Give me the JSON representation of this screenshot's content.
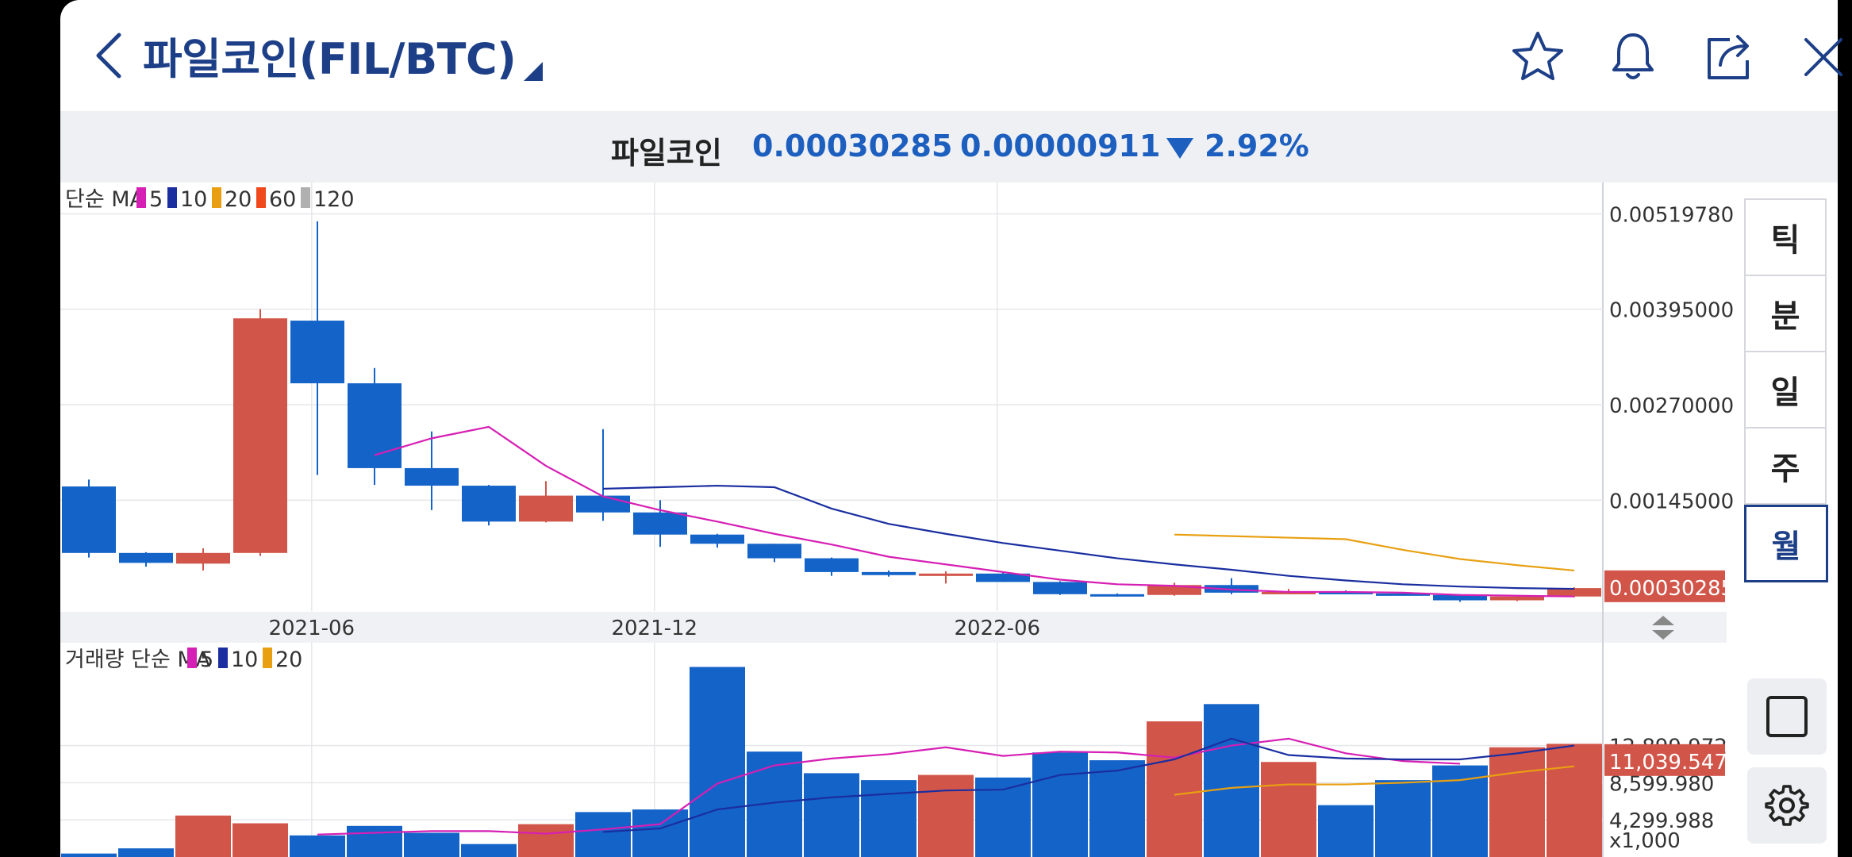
{
  "header": {
    "title": "파일코인(FIL/BTC)",
    "icons": [
      "back-chevron-icon",
      "star-icon",
      "bell-icon",
      "share-icon",
      "close-icon"
    ]
  },
  "price_bar": {
    "name": "파일코인",
    "price": "0.00030285",
    "change": "0.00000911",
    "change_pct": "2.92%",
    "direction": "down",
    "color": "#1d5fbf"
  },
  "periods": [
    {
      "label": "틱",
      "active": false
    },
    {
      "label": "분",
      "active": false
    },
    {
      "label": "일",
      "active": false
    },
    {
      "label": "주",
      "active": false
    },
    {
      "label": "월",
      "active": true
    }
  ],
  "price_legend": {
    "prefix": "단순 MA",
    "items": [
      {
        "label": "5",
        "color": "#d61fb4"
      },
      {
        "label": "10",
        "color": "#1a2ea0"
      },
      {
        "label": "20",
        "color": "#e8a012"
      },
      {
        "label": "60",
        "color": "#f0491e"
      },
      {
        "label": "120",
        "color": "#b0b0b0"
      }
    ]
  },
  "volume_legend": {
    "prefix": "거래량 단순 MA",
    "items": [
      {
        "label": "5",
        "color": "#d61fb4"
      },
      {
        "label": "10",
        "color": "#1a2ea0"
      },
      {
        "label": "20",
        "color": "#e8a012"
      }
    ]
  },
  "chart_data": {
    "type": "candlestick",
    "colors": {
      "up": "#d2554a",
      "down": "#1463c8"
    },
    "x_ticks": [
      "2021-06",
      "2021-12",
      "2022-06"
    ],
    "price_axis_ticks": [
      "0.00519780",
      "0.00395000",
      "0.00270000",
      "0.00145000"
    ],
    "last_price_label": "0.00030285",
    "volume_axis_ticks": [
      "12,899.972",
      "8,599.980",
      "4,299.988"
    ],
    "last_volume_label": "11,039.547",
    "volume_unit": "x1,000",
    "candles": [
      {
        "o": 0.00163,
        "h": 0.00172,
        "l": 0.0007,
        "c": 0.00076
      },
      {
        "o": 0.00076,
        "h": 0.00077,
        "l": 0.00058,
        "c": 0.00063
      },
      {
        "o": 0.00062,
        "h": 0.00082,
        "l": 0.00053,
        "c": 0.00076
      },
      {
        "o": 0.00076,
        "h": 0.00395,
        "l": 0.00072,
        "c": 0.00383
      },
      {
        "o": 0.0038,
        "h": 0.0051,
        "l": 0.00178,
        "c": 0.00298
      },
      {
        "o": 0.00298,
        "h": 0.00318,
        "l": 0.00165,
        "c": 0.00187
      },
      {
        "o": 0.00187,
        "h": 0.00235,
        "l": 0.00132,
        "c": 0.00164
      },
      {
        "o": 0.00164,
        "h": 0.00165,
        "l": 0.00112,
        "c": 0.00117
      },
      {
        "o": 0.00117,
        "h": 0.0017,
        "l": 0.00116,
        "c": 0.00151
      },
      {
        "o": 0.00151,
        "h": 0.00238,
        "l": 0.00118,
        "c": 0.00129
      },
      {
        "o": 0.00129,
        "h": 0.00145,
        "l": 0.00084,
        "c": 0.001
      },
      {
        "o": 0.001,
        "h": 0.00101,
        "l": 0.00083,
        "c": 0.00088
      },
      {
        "o": 0.00088,
        "h": 0.00088,
        "l": 0.00064,
        "c": 0.00069
      },
      {
        "o": 0.00069,
        "h": 0.0007,
        "l": 0.00046,
        "c": 0.00051
      },
      {
        "o": 0.00051,
        "h": 0.00053,
        "l": 0.00045,
        "c": 0.00047
      },
      {
        "o": 0.00047,
        "h": 0.00052,
        "l": 0.00036,
        "c": 0.00049
      },
      {
        "o": 0.00049,
        "h": 0.0005,
        "l": 0.00038,
        "c": 0.00038
      },
      {
        "o": 0.00038,
        "h": 0.00039,
        "l": 0.00021,
        "c": 0.00022
      },
      {
        "o": 0.00022,
        "h": 0.00023,
        "l": 0.00019,
        "c": 0.00021
      },
      {
        "o": 0.00021,
        "h": 0.00037,
        "l": 0.0002,
        "c": 0.00034
      },
      {
        "o": 0.00034,
        "h": 0.00043,
        "l": 0.00022,
        "c": 0.00024
      },
      {
        "o": 0.00024,
        "h": 0.00029,
        "l": 0.00022,
        "c": 0.00025
      },
      {
        "o": 0.00025,
        "h": 0.00027,
        "l": 0.00022,
        "c": 0.00023
      },
      {
        "o": 0.00023,
        "h": 0.00024,
        "l": 0.0002,
        "c": 0.00021
      },
      {
        "o": 0.00021,
        "h": 0.00022,
        "l": 0.00012,
        "c": 0.00014
      },
      {
        "o": 0.00014,
        "h": 0.00021,
        "l": 0.00013,
        "c": 0.00019
      },
      {
        "o": 0.00019,
        "h": 0.00031,
        "l": 0.00018,
        "c": 0.0003
      }
    ],
    "price_ma5": [
      null,
      null,
      null,
      null,
      null,
      0.00204,
      0.00226,
      0.00241,
      0.0019,
      0.0015,
      0.00132,
      0.00117,
      0.00101,
      0.00087,
      0.00071,
      0.00061,
      0.00051,
      0.00041,
      0.00035,
      0.00033,
      0.00028,
      0.00025,
      0.00025,
      0.00024,
      0.00021,
      0.0002,
      0.00019
    ],
    "price_ma10": [
      null,
      null,
      null,
      null,
      null,
      null,
      null,
      null,
      null,
      0.0016,
      0.00162,
      0.00164,
      0.00162,
      0.00134,
      0.00114,
      0.00101,
      0.00089,
      0.00079,
      0.00069,
      0.00061,
      0.00054,
      0.00046,
      0.0004,
      0.00035,
      0.00032,
      0.0003,
      0.00029
    ],
    "price_ma20": [
      null,
      null,
      null,
      null,
      null,
      null,
      null,
      null,
      null,
      null,
      null,
      null,
      null,
      null,
      null,
      null,
      null,
      null,
      null,
      0.001,
      0.00098,
      0.00096,
      0.00094,
      0.0008,
      0.00068,
      0.0006,
      0.00053
    ],
    "volume": [
      400,
      1000,
      4800,
      3900,
      2500,
      3600,
      2800,
      1500,
      3800,
      5200,
      5500,
      22000,
      12200,
      9700,
      8900,
      9500,
      9200,
      12100,
      11200,
      15700,
      17700,
      11000,
      6000,
      8900,
      10600,
      12700,
      13100
    ],
    "volume_ma5": [
      null,
      null,
      null,
      null,
      2600,
      2800,
      3000,
      3000,
      2700,
      3200,
      3800,
      8500,
      10600,
      11400,
      11900,
      12700,
      11700,
      12200,
      12100,
      11500,
      12900,
      13700,
      12000,
      11100,
      10800,
      null,
      null
    ],
    "volume_ma10": [
      null,
      null,
      null,
      null,
      null,
      null,
      null,
      null,
      null,
      2900,
      3300,
      5500,
      6300,
      6900,
      7300,
      7700,
      7800,
      9500,
      10000,
      11300,
      13700,
      11800,
      11400,
      11300,
      11300,
      12000,
      12900
    ],
    "volume_ma20": [
      null,
      null,
      null,
      null,
      null,
      null,
      null,
      null,
      null,
      null,
      null,
      null,
      null,
      null,
      null,
      null,
      null,
      null,
      null,
      7200,
      8000,
      8400,
      8400,
      8600,
      8900,
      9800,
      10500
    ]
  }
}
